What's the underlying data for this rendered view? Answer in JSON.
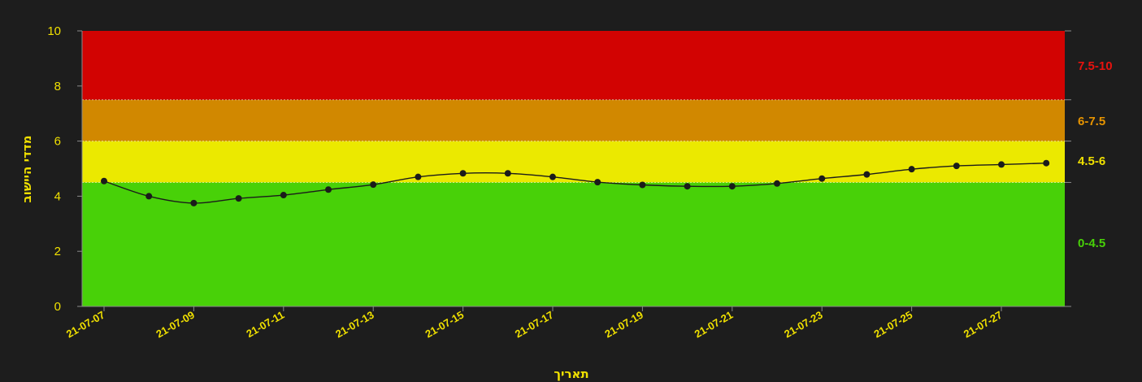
{
  "chart_data": {
    "type": "line",
    "xlabel": "תאריך",
    "ylabel": "מדדי היישוב",
    "ylim": [
      0,
      10
    ],
    "y_ticks": [
      0,
      2,
      4,
      6,
      8,
      10
    ],
    "x_tick_labels": [
      "21-07-07",
      "21-07-09",
      "21-07-11",
      "21-07-13",
      "21-07-15",
      "21-07-17",
      "21-07-19",
      "21-07-21",
      "21-07-23",
      "21-07-25",
      "21-07-27"
    ],
    "x": [
      "21-07-07",
      "21-07-08",
      "21-07-09",
      "21-07-10",
      "21-07-11",
      "21-07-12",
      "21-07-13",
      "21-07-14",
      "21-07-15",
      "21-07-16",
      "21-07-17",
      "21-07-18",
      "21-07-19",
      "21-07-20",
      "21-07-21",
      "21-07-22",
      "21-07-23",
      "21-07-24",
      "21-07-25",
      "21-07-26",
      "21-07-27",
      "21-07-28"
    ],
    "series": [
      {
        "values": [
          4.55,
          4.0,
          3.75,
          3.92,
          4.04,
          4.24,
          4.42,
          4.7,
          4.83,
          4.83,
          4.7,
          4.51,
          4.41,
          4.36,
          4.36,
          4.46,
          4.64,
          4.79,
          4.98,
          5.1,
          5.15,
          5.2
        ]
      }
    ],
    "bands": [
      {
        "label": "0-4.5",
        "from": 0,
        "to": 4.5,
        "color": "#48d108"
      },
      {
        "label": "4.5-6",
        "from": 4.5,
        "to": 6,
        "color": "#ebe900"
      },
      {
        "label": "6-7.5",
        "from": 6,
        "to": 7.5,
        "color": "#d18800"
      },
      {
        "label": "7.5-10",
        "from": 7.5,
        "to": 10,
        "color": "#d20302"
      }
    ],
    "band_label_colors": {
      "0-4.5": "#48d108",
      "4.5-6": "#f0e000",
      "6-7.5": "#e79400",
      "7.5-10": "#e8120e"
    },
    "line_color": "#1b1b1b",
    "axis_color": "#f0e000",
    "background": "#1d1d1d",
    "grid": false
  }
}
